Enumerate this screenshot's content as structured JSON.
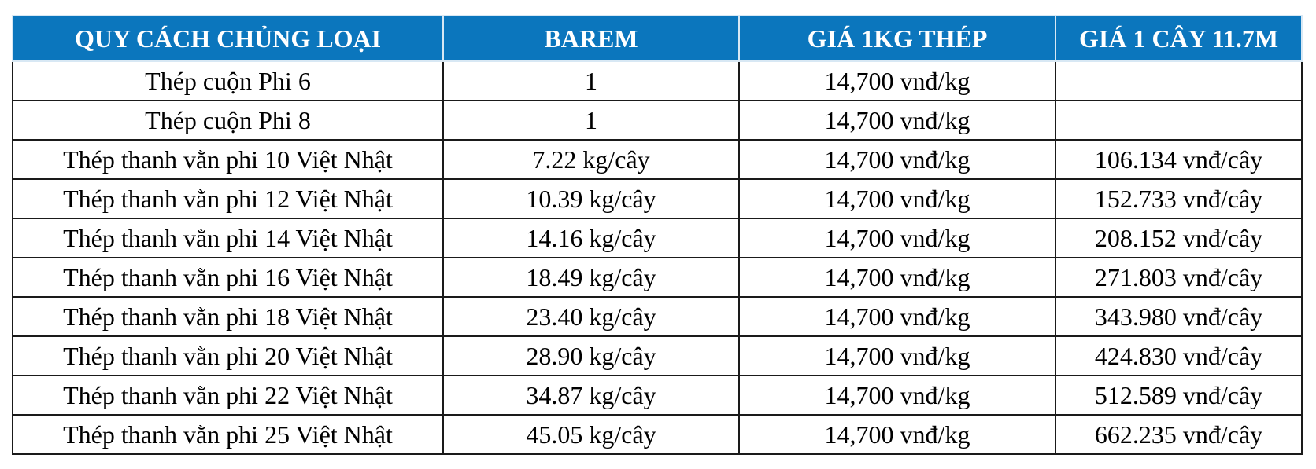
{
  "table": {
    "header": [
      "QUY CÁCH CHỦNG LOẠI",
      "BAREM",
      "GIÁ 1KG THÉP",
      "GIÁ 1 CÂY 11.7M"
    ],
    "rows": [
      [
        "Thép cuộn Phi 6",
        "1",
        "14,700 vnđ/kg",
        null
      ],
      [
        "Thép cuộn Phi 8",
        "1",
        "14,700 vnđ/kg",
        null
      ],
      [
        "Thép thanh vằn phi 10 Việt Nhật",
        "7.22 kg/cây",
        "14,700 vnđ/kg",
        "106.134 vnđ/cây"
      ],
      [
        "Thép thanh vằn phi 12 Việt Nhật",
        "10.39 kg/cây",
        "14,700 vnđ/kg",
        "152.733 vnđ/cây"
      ],
      [
        "Thép thanh vằn phi 14 Việt Nhật",
        "14.16 kg/cây",
        "14,700 vnđ/kg",
        "208.152 vnđ/cây"
      ],
      [
        "Thép thanh vằn phi 16 Việt Nhật",
        "18.49 kg/cây",
        "14,700 vnđ/kg",
        "271.803 vnđ/cây"
      ],
      [
        "Thép thanh vằn phi 18 Việt Nhật",
        "23.40 kg/cây",
        "14,700 vnđ/kg",
        "343.980 vnđ/cây"
      ],
      [
        "Thép thanh vằn phi 20 Việt Nhật",
        "28.90 kg/cây",
        "14,700 vnđ/kg",
        "424.830 vnđ/cây"
      ],
      [
        "Thép thanh vằn phi 22 Việt Nhật",
        "34.87 kg/cây",
        "14,700 vnđ/kg",
        "512.589 vnđ/cây"
      ],
      [
        "Thép thanh vằn phi 25 Việt Nhật",
        "45.05 kg/cây",
        "14,700 vnđ/kg",
        "662.235 vnđ/cây"
      ]
    ]
  }
}
